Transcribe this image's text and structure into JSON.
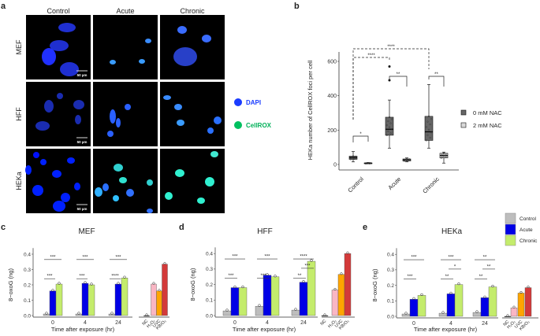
{
  "panel_a": {
    "letter": "a",
    "columns": [
      "Control",
      "Acute",
      "Chronic"
    ],
    "rows": [
      "MEF",
      "HFF",
      "HEKa"
    ],
    "scale_bar": "50 µm",
    "legend": [
      {
        "label": "DAPI",
        "color": "#1a3cff"
      },
      {
        "label": "CellROX",
        "color": "#00c060"
      }
    ]
  },
  "chart_data": [
    {
      "panel": "b",
      "type": "box",
      "ylabel": "HEKa number of CellROX foci per cell",
      "categories": [
        "Control",
        "Acute",
        "Chronic"
      ],
      "ylim": [
        0,
        650
      ],
      "yticks": [
        0,
        200,
        400,
        600
      ],
      "legend_position": "right",
      "series": [
        {
          "name": "0 mM NAC",
          "color": "#666666",
          "boxes": [
            {
              "min": 15,
              "q1": 30,
              "median": 40,
              "q3": 48,
              "max": 75,
              "outliers": []
            },
            {
              "min": 95,
              "q1": 170,
              "median": 205,
              "q3": 275,
              "max": 375,
              "outliers": [
                490,
                570
              ]
            },
            {
              "min": 95,
              "q1": 140,
              "median": 190,
              "q3": 280,
              "max": 465,
              "outliers": []
            }
          ]
        },
        {
          "name": "2 mM NAC",
          "color": "#d9d9d9",
          "boxes": [
            {
              "min": 4,
              "q1": 5,
              "median": 7,
              "q3": 9,
              "max": 11,
              "outliers": []
            },
            {
              "min": 15,
              "q1": 20,
              "median": 27,
              "q3": 32,
              "max": 38,
              "outliers": []
            },
            {
              "min": 8,
              "q1": 38,
              "median": 52,
              "q3": 65,
              "max": 72,
              "outliers": []
            }
          ]
        }
      ],
      "significance": [
        {
          "from": "Control|0 mM NAC",
          "to": "Chronic|0 mM NAC",
          "label": "****"
        },
        {
          "from": "Control|0 mM NAC",
          "to": "Acute|0 mM NAC",
          "label": "****"
        },
        {
          "from": "Control|0 mM NAC",
          "to": "Control|2 mM NAC",
          "label": "*"
        },
        {
          "from": "Acute|0 mM NAC",
          "to": "Acute|2 mM NAC",
          "label": "**"
        },
        {
          "from": "Chronic|0 mM NAC",
          "to": "Chronic|2 mM NAC",
          "label": "**"
        }
      ]
    },
    {
      "panel": "c",
      "type": "bar",
      "title": "MEF",
      "xlabel": "Time after exposure (hr)",
      "ylabel": "8−oxoG (ng)",
      "ylim": [
        0,
        0.4
      ],
      "yticks": [
        "0.0",
        "0.1",
        "0.2",
        "0.3",
        "0.4"
      ],
      "categories": [
        "0",
        "4",
        "24"
      ],
      "series": [
        {
          "name": "Control",
          "values": [
            0.01,
            0.01,
            0.01
          ]
        },
        {
          "name": "Acute",
          "values": [
            0.16,
            0.21,
            0.205
          ]
        },
        {
          "name": "Chronic",
          "values": [
            0.205,
            0.2,
            0.245
          ]
        }
      ],
      "controls": {
        "labels": [
          "NC",
          "H₂O₂",
          "UVC",
          "KBrO₃"
        ],
        "values": [
          0.0,
          0.205,
          0.16,
          0.335
        ]
      },
      "significance": [
        {
          "group": "0",
          "pair": "Control-Chronic",
          "label": "***"
        },
        {
          "group": "0",
          "pair": "Control-Acute",
          "label": "***"
        },
        {
          "group": "4",
          "pair": "Control-Chronic",
          "label": "***"
        },
        {
          "group": "4",
          "pair": "Control-Acute",
          "label": "***"
        },
        {
          "group": "24",
          "pair": "Control-Chronic",
          "label": "***"
        },
        {
          "group": "24",
          "pair": "Control-Acute",
          "label": "****"
        }
      ]
    },
    {
      "panel": "d",
      "type": "bar",
      "title": "HFF",
      "xlabel": "Time after exposure (hr)",
      "ylabel": "8−oxoG (ng)",
      "ylim": [
        0,
        0.4
      ],
      "yticks": [
        "0.0",
        "0.1",
        "0.2",
        "0.3",
        "0.4"
      ],
      "categories": [
        "0",
        "4",
        "24"
      ],
      "series": [
        {
          "name": "Control",
          "values": [
            0.03,
            0.06,
            0.035
          ]
        },
        {
          "name": "Acute",
          "values": [
            0.18,
            0.26,
            0.215
          ]
        },
        {
          "name": "Chronic",
          "values": [
            0.18,
            0.25,
            0.35
          ]
        }
      ],
      "controls": {
        "labels": [
          "NC",
          "H₂O₂",
          "UVC",
          "KBrO₃"
        ],
        "values": [
          0.0,
          0.165,
          0.265,
          0.4
        ]
      },
      "significance": [
        {
          "group": "0",
          "pair": "Control-Chronic",
          "label": "***"
        },
        {
          "group": "0",
          "pair": "Control-Acute",
          "label": "***"
        },
        {
          "group": "4",
          "pair": "Control-Chronic",
          "label": "***"
        },
        {
          "group": "4",
          "pair": "Control-Acute",
          "label": "***"
        },
        {
          "group": "24",
          "pair": "Control-Chronic",
          "label": "****"
        },
        {
          "group": "24",
          "pair": "Acute-Chronic",
          "label": "***"
        },
        {
          "group": "24",
          "pair": "Control-Acute",
          "label": "**"
        }
      ]
    },
    {
      "panel": "e",
      "type": "bar",
      "title": "HEKa",
      "xlabel": "Time after exposure (hr)",
      "ylabel": "8−oxoG (ng)",
      "ylim": [
        0,
        0.4
      ],
      "yticks": [
        "0.0",
        "0.1",
        "0.2",
        "0.3",
        "0.4"
      ],
      "categories": [
        "0",
        "4",
        "24"
      ],
      "series": [
        {
          "name": "Control",
          "values": [
            0.015,
            0.02,
            0.025
          ]
        },
        {
          "name": "Acute",
          "values": [
            0.11,
            0.145,
            0.12
          ]
        },
        {
          "name": "Chronic",
          "values": [
            0.135,
            0.205,
            0.19
          ]
        }
      ],
      "controls": {
        "labels": [
          "NC",
          "H₂O₂",
          "UVC",
          "KBrO₃"
        ],
        "values": [
          0.0,
          0.055,
          0.15,
          0.185
        ]
      },
      "significance": [
        {
          "group": "0",
          "pair": "Control-Chronic",
          "label": "***"
        },
        {
          "group": "0",
          "pair": "Control-Acute",
          "label": "***"
        },
        {
          "group": "4",
          "pair": "Control-Chronic",
          "label": "***"
        },
        {
          "group": "4",
          "pair": "Acute-Chronic",
          "label": "*"
        },
        {
          "group": "4",
          "pair": "Control-Acute",
          "label": "**"
        },
        {
          "group": "24",
          "pair": "Control-Chronic",
          "label": "**"
        },
        {
          "group": "24",
          "pair": "Acute-Chronic",
          "label": "**"
        },
        {
          "group": "24",
          "pair": "Control-Acute",
          "label": "**"
        }
      ]
    }
  ],
  "bar_legend": [
    {
      "label": "Control",
      "color": "#bdbdbd"
    },
    {
      "label": "Acute",
      "color": "#0000e6"
    },
    {
      "label": "Chronic",
      "color": "#c4ec6c"
    }
  ],
  "control_colors": [
    "#000000",
    "#f9b6c4",
    "#ffa500",
    "#d33a3a"
  ]
}
